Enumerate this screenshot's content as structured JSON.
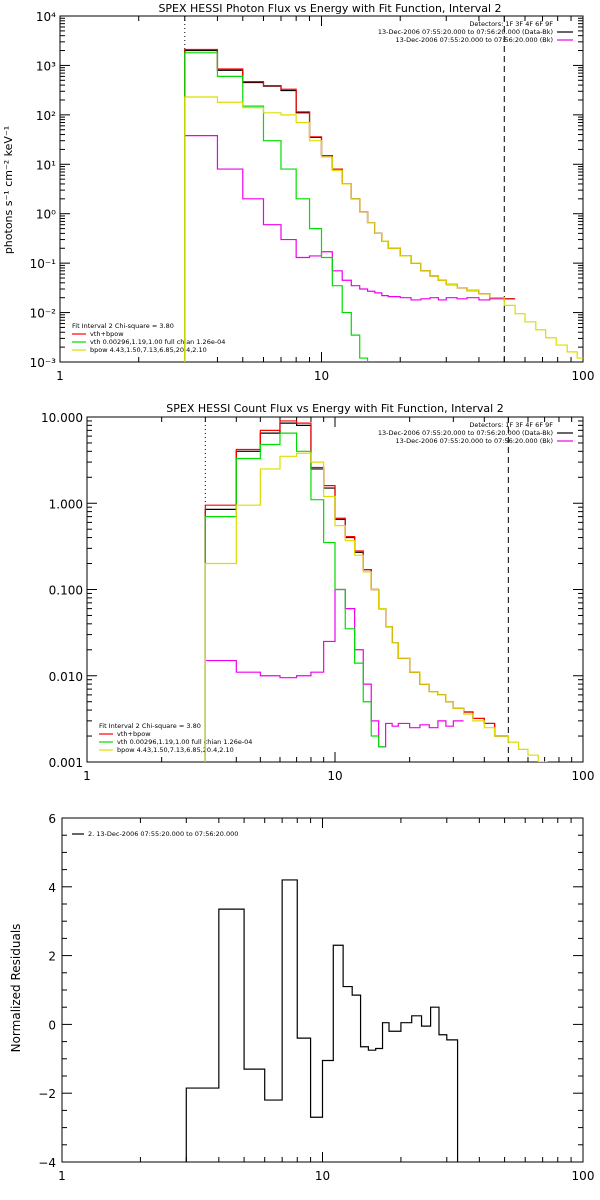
{
  "chart_data": [
    {
      "type": "line",
      "title": "SPEX HESSI Photon Flux vs Energy with Fit Function, Interval 2",
      "xlabel": "",
      "ylabel": "photons s⁻¹ cm⁻² keV⁻¹",
      "x_scale": "log",
      "y_scale": "log",
      "xlim": [
        1,
        100
      ],
      "ylim": [
        0.001,
        10000
      ],
      "x_ticks": [
        "1",
        "10",
        "100"
      ],
      "y_ticks": [
        "10⁻³",
        "10⁻²",
        "10⁻¹",
        "10⁰",
        "10¹",
        "10²",
        "10³",
        "10⁴"
      ],
      "vlines": [
        {
          "x": 3,
          "style": "dotted"
        },
        {
          "x": 50,
          "style": "dashed"
        }
      ],
      "legend_top_right": [
        "Detectors: 1F 3F 4F 6F 9F",
        "13-Dec-2006 07:55:20.000 to 07:56:20.000 (Data-Bk)",
        "13-Dec-2006 07:55:20.000 to 07:56:20.000 (Bk)"
      ],
      "legend_bottom_left_title": "Fit Interval 2   Chi-square = 3.80",
      "legend_bottom_left": [
        "vth+bpow",
        "vth 0.00296,1.19,1.00  full chian 1.26e-04",
        "bpow 4.43,1.50,7.13,6.85,20.4,2.10"
      ],
      "edges": [
        3,
        4,
        5,
        6,
        7,
        8,
        9,
        10,
        11,
        12,
        13,
        14,
        15,
        16,
        17,
        18,
        20,
        22,
        24,
        26,
        28,
        30,
        33,
        36,
        40,
        44,
        50,
        55,
        60,
        66,
        72,
        79,
        87,
        95,
        100
      ],
      "series": [
        {
          "name": "Data-Bk",
          "color": "#000000",
          "values": [
            2000,
            800,
            450,
            380,
            310,
            110,
            35,
            15,
            8,
            4,
            2,
            1.1,
            0.65,
            0.4,
            0.28,
            0.2,
            0.14,
            0.1,
            0.07,
            0.055,
            0.045,
            0.037,
            0.032,
            0.028,
            0.024,
            0.02,
            0.019
          ]
        },
        {
          "name": "Bk",
          "color": "#ee00ee",
          "values": [
            38,
            8,
            2,
            0.6,
            0.3,
            0.13,
            0.14,
            0.17,
            0.07,
            0.045,
            0.035,
            0.03,
            0.027,
            0.025,
            0.022,
            0.021,
            0.02,
            0.018,
            0.019,
            0.02,
            0.018,
            0.02,
            0.019,
            0.02,
            0.018,
            0.019
          ]
        },
        {
          "name": "vth+bpow",
          "color": "#ff0000",
          "values": [
            2100,
            850,
            470,
            390,
            330,
            115,
            36,
            15,
            8,
            4,
            2,
            1.1,
            0.65,
            0.4,
            0.28,
            0.2,
            0.14,
            0.1,
            0.07,
            0.055,
            0.045,
            0.037,
            0.032,
            0.028,
            0.024,
            0.02,
            0.019
          ]
        },
        {
          "name": "vth",
          "color": "#00dd00",
          "values": [
            1800,
            600,
            150,
            30,
            8,
            2,
            0.5,
            0.13,
            0.035,
            0.01,
            0.0035,
            0.0012,
            0.0005
          ]
        },
        {
          "name": "bpow",
          "color": "#dddd00",
          "values": [
            230,
            180,
            140,
            110,
            100,
            70,
            30,
            14,
            7.5,
            4,
            2,
            1.1,
            0.65,
            0.4,
            0.28,
            0.2,
            0.14,
            0.1,
            0.07,
            0.055,
            0.045,
            0.037,
            0.032,
            0.028,
            0.024,
            0.02,
            0.014,
            0.0095,
            0.0065,
            0.0045,
            0.0031,
            0.0022,
            0.0016,
            0.0012
          ]
        }
      ]
    },
    {
      "type": "line",
      "title": "SPEX HESSI Count Flux vs Energy with Fit Function, Interval 2",
      "xlabel": "",
      "ylabel": "",
      "x_scale": "log",
      "y_scale": "log",
      "xlim": [
        1,
        100
      ],
      "ylim": [
        0.001,
        10
      ],
      "x_ticks": [
        "1",
        "10",
        "100"
      ],
      "y_ticks": [
        "0.001",
        "0.010",
        "0.100",
        "1.000",
        "10.000"
      ],
      "vlines": [
        {
          "x": 3,
          "style": "dotted"
        },
        {
          "x": 50,
          "style": "dashed"
        }
      ],
      "legend_top_right": [
        "Detectors: 1F 3F 4F 6F 9F",
        "13-Dec-2006 07:55:20.000 to 07:56:20.000 (Data-Bk)",
        "13-Dec-2006 07:55:20.000 to 07:56:20.000 (Bk)"
      ],
      "legend_bottom_left_title": "Fit Interval 2   Chi-square = 3.80",
      "legend_bottom_left": [
        "vth+bpow",
        "vth 0.00296,1.19,1.00  full chian 1.26e-04",
        "bpow 4.43,1.50,7.13,6.85,20.4,2.10"
      ],
      "edges": [
        3,
        4,
        5,
        6,
        7,
        8,
        9,
        10,
        11,
        12,
        13,
        14,
        15,
        16,
        17,
        18,
        20,
        22,
        24,
        26,
        28,
        30,
        33,
        36,
        40,
        44,
        50,
        55,
        60,
        66,
        72,
        79,
        87,
        95,
        100
      ],
      "series": [
        {
          "name": "Data-Bk",
          "color": "#000000",
          "values": [
            0.85,
            4.0,
            6.5,
            8.5,
            8.0,
            2.5,
            1.5,
            0.65,
            0.4,
            0.27,
            0.17,
            0.1,
            0.06,
            0.037,
            0.024,
            0.016,
            0.011,
            0.008,
            0.0065,
            0.006,
            0.005,
            0.0042,
            0.0038,
            0.0032,
            0.0028,
            0.002
          ]
        },
        {
          "name": "Bk",
          "color": "#ee00ee",
          "values": [
            0.015,
            0.011,
            0.01,
            0.0095,
            0.01,
            0.011,
            0.025,
            0.1,
            0.06,
            0.02,
            0.008,
            0.003,
            0.0015,
            0.0028,
            0.0026,
            0.0028,
            0.0025,
            0.0027,
            0.0025,
            0.003,
            0.0026,
            0.003
          ]
        },
        {
          "name": "vth+bpow",
          "color": "#ff0000",
          "values": [
            0.95,
            4.2,
            7.0,
            9.0,
            8.5,
            2.6,
            1.6,
            0.67,
            0.41,
            0.28,
            0.17,
            0.1,
            0.06,
            0.037,
            0.024,
            0.016,
            0.011,
            0.008,
            0.0065,
            0.006,
            0.005,
            0.0042,
            0.0038,
            0.0032,
            0.0028,
            0.002
          ]
        },
        {
          "name": "vth",
          "color": "#00dd00",
          "values": [
            0.7,
            3.3,
            4.8,
            6.5,
            4.0,
            1.1,
            0.35,
            0.1,
            0.035,
            0.014,
            0.005,
            0.002,
            0.0015
          ]
        },
        {
          "name": "bpow",
          "color": "#dddd00",
          "values": [
            0.2,
            0.95,
            2.5,
            3.5,
            3.8,
            3.0,
            1.2,
            0.55,
            0.37,
            0.25,
            0.16,
            0.1,
            0.06,
            0.037,
            0.024,
            0.016,
            0.011,
            0.008,
            0.0065,
            0.006,
            0.005,
            0.0042,
            0.0036,
            0.003,
            0.0025,
            0.002,
            0.0017,
            0.0014,
            0.0012,
            0.001
          ]
        }
      ]
    },
    {
      "type": "line",
      "title": "",
      "xlabel": "",
      "ylabel": "Normalized Residuals",
      "x_scale": "log",
      "y_scale": "linear",
      "xlim": [
        1,
        100
      ],
      "ylim": [
        -4,
        6
      ],
      "x_ticks": [
        "1",
        "10",
        "100"
      ],
      "y_ticks": [
        "6",
        "4",
        "2",
        "0",
        "−2",
        "−4"
      ],
      "legend_top_left": [
        "2. 13-Dec-2006 07:55:20.000 to 07:56:20.000"
      ],
      "edges": [
        3,
        4,
        5,
        6,
        7,
        8,
        9,
        10,
        11,
        12,
        13,
        14,
        15,
        16,
        17,
        18,
        20,
        22,
        24,
        26,
        28,
        30,
        33,
        36,
        40,
        44,
        50
      ],
      "series": [
        {
          "name": "2. 13-Dec-2006 07:55:20.000 to 07:56:20.000",
          "color": "#000000",
          "values": [
            -1.85,
            3.35,
            -1.3,
            -2.2,
            4.2,
            -0.4,
            -2.7,
            -1.05,
            2.3,
            1.1,
            0.85,
            -0.65,
            -0.75,
            -0.7,
            0.05,
            -0.2,
            0.05,
            0.25,
            -0.05,
            0.5,
            -0.3,
            -0.45
          ]
        }
      ]
    }
  ]
}
